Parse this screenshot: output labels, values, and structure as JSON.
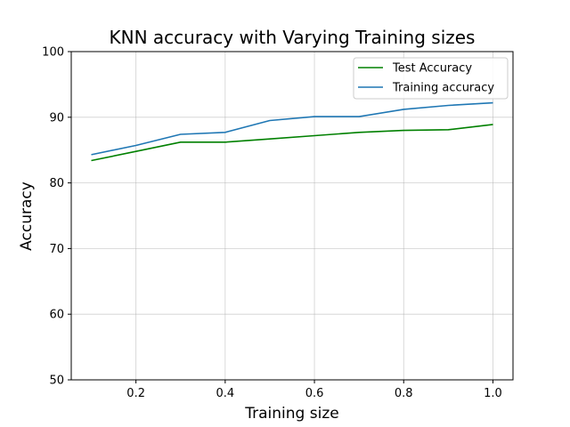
{
  "chart_data": {
    "type": "line",
    "title": "KNN accuracy with Varying Training sizes",
    "xlabel": "Training size",
    "ylabel": "Accuracy",
    "x": [
      0.1,
      0.2,
      0.3,
      0.4,
      0.5,
      0.6,
      0.7,
      0.8,
      0.9,
      1.0
    ],
    "xlim": [
      0.055,
      1.045
    ],
    "ylim": [
      50,
      100
    ],
    "xticks": [
      0.2,
      0.4,
      0.6,
      0.8,
      1.0
    ],
    "xtick_labels": [
      "0.2",
      "0.4",
      "0.6",
      "0.8",
      "1.0"
    ],
    "yticks": [
      50,
      60,
      70,
      80,
      90,
      100
    ],
    "ytick_labels": [
      "50",
      "60",
      "70",
      "80",
      "90",
      "100"
    ],
    "grid": true,
    "legend_position": "top-right",
    "series": [
      {
        "name": "Test Accuracy",
        "color": "#008000",
        "values": [
          83.4,
          84.8,
          86.2,
          86.2,
          86.7,
          87.2,
          87.7,
          88.0,
          88.1,
          88.9
        ]
      },
      {
        "name": "Training accuracy",
        "color": "#1f77b4",
        "values": [
          84.3,
          85.7,
          87.4,
          87.7,
          89.5,
          90.1,
          90.1,
          91.2,
          91.8,
          92.2
        ]
      }
    ]
  }
}
